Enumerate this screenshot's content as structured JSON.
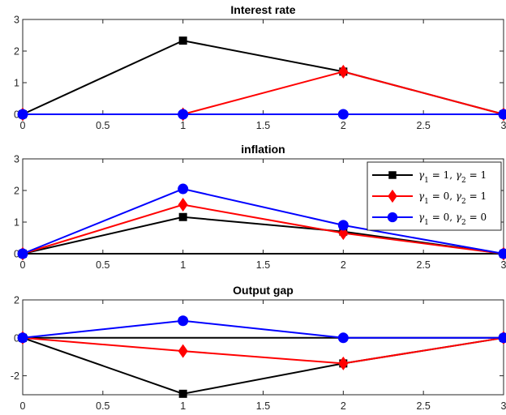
{
  "chart_data": [
    {
      "type": "line",
      "title": "Interest rate",
      "xlabel": "",
      "ylabel": "",
      "xlim": [
        0,
        3
      ],
      "ylim": [
        0,
        3
      ],
      "x_ticks": [
        0,
        0.5,
        1,
        1.5,
        2,
        2.5,
        3
      ],
      "y_ticks": [
        0,
        1,
        2,
        3
      ],
      "zero_line": true,
      "grid": false,
      "series": [
        {
          "legend_index": 0,
          "color": "#000000",
          "marker": "square",
          "x": [
            0,
            1,
            2,
            3
          ],
          "y": [
            0,
            2.33,
            1.35,
            0
          ]
        },
        {
          "legend_index": 1,
          "color": "#ff0000",
          "marker": "diamond",
          "x": [
            0,
            1,
            2,
            3
          ],
          "y": [
            0,
            0,
            1.35,
            0
          ]
        },
        {
          "legend_index": 2,
          "color": "#0000ff",
          "marker": "circle",
          "x": [
            0,
            1,
            2,
            3
          ],
          "y": [
            0,
            0,
            0,
            0
          ]
        }
      ]
    },
    {
      "type": "line",
      "title": "inflation",
      "xlabel": "",
      "ylabel": "",
      "xlim": [
        0,
        3
      ],
      "ylim": [
        0,
        3
      ],
      "x_ticks": [
        0,
        0.5,
        1,
        1.5,
        2,
        2.5,
        3
      ],
      "y_ticks": [
        0,
        1,
        2,
        3
      ],
      "zero_line": true,
      "grid": false,
      "legend_position": "top-right",
      "series": [
        {
          "legend_index": 0,
          "color": "#000000",
          "marker": "square",
          "x": [
            0,
            1,
            2,
            3
          ],
          "y": [
            0,
            1.16,
            0.7,
            0
          ]
        },
        {
          "legend_index": 1,
          "color": "#ff0000",
          "marker": "diamond",
          "x": [
            0,
            1,
            2,
            3
          ],
          "y": [
            0,
            1.55,
            0.65,
            0
          ]
        },
        {
          "legend_index": 2,
          "color": "#0000ff",
          "marker": "circle",
          "x": [
            0,
            1,
            2,
            3
          ],
          "y": [
            0,
            2.05,
            0.9,
            0
          ]
        }
      ]
    },
    {
      "type": "line",
      "title": "Output gap",
      "xlabel": "",
      "ylabel": "",
      "xlim": [
        0,
        3
      ],
      "ylim": [
        -3,
        2
      ],
      "x_ticks": [
        0,
        0.5,
        1,
        1.5,
        2,
        2.5,
        3
      ],
      "y_ticks": [
        -2,
        0,
        2
      ],
      "zero_line": true,
      "grid": false,
      "series": [
        {
          "legend_index": 0,
          "color": "#000000",
          "marker": "square",
          "x": [
            0,
            1,
            2,
            3
          ],
          "y": [
            0,
            -2.95,
            -1.35,
            0
          ]
        },
        {
          "legend_index": 1,
          "color": "#ff0000",
          "marker": "diamond",
          "x": [
            0,
            1,
            2,
            3
          ],
          "y": [
            0,
            -0.7,
            -1.35,
            0
          ]
        },
        {
          "legend_index": 2,
          "color": "#0000ff",
          "marker": "circle",
          "x": [
            0,
            1,
            2,
            3
          ],
          "y": [
            0,
            0.9,
            0,
            0
          ]
        }
      ]
    }
  ],
  "legend": {
    "entries": [
      {
        "g1": "1",
        "g2": "1",
        "color": "#000000",
        "marker": "square"
      },
      {
        "g1": "0",
        "g2": "1",
        "color": "#ff0000",
        "marker": "diamond"
      },
      {
        "g1": "0",
        "g2": "0",
        "color": "#0000ff",
        "marker": "circle"
      }
    ]
  }
}
